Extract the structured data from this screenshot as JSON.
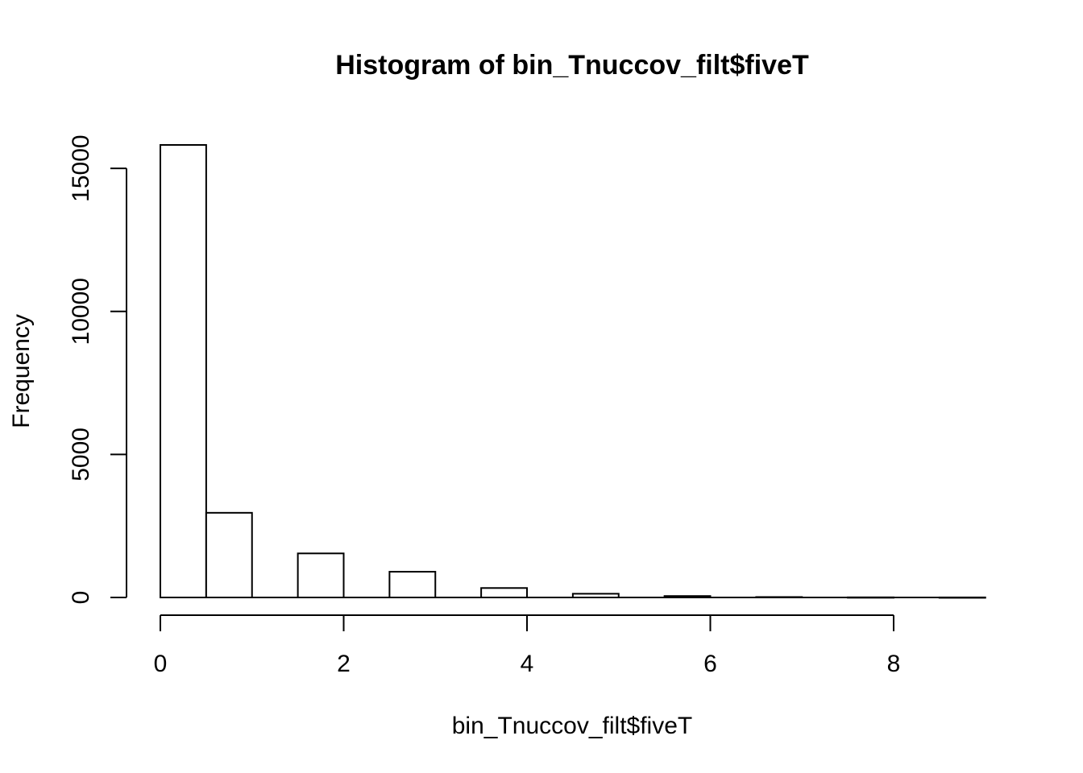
{
  "chart_data": {
    "type": "bar",
    "title": "Histogram of bin_Tnuccov_filt$fiveT",
    "xlabel": "bin_Tnuccov_filt$fiveT",
    "ylabel": "Frequency",
    "bins": [
      {
        "from": 0.0,
        "to": 0.5,
        "count": 15820
      },
      {
        "from": 0.5,
        "to": 1.0,
        "count": 2960
      },
      {
        "from": 1.0,
        "to": 1.5,
        "count": 0
      },
      {
        "from": 1.5,
        "to": 2.0,
        "count": 1540
      },
      {
        "from": 2.0,
        "to": 2.5,
        "count": 0
      },
      {
        "from": 2.5,
        "to": 3.0,
        "count": 900
      },
      {
        "from": 3.0,
        "to": 3.5,
        "count": 0
      },
      {
        "from": 3.5,
        "to": 4.0,
        "count": 330
      },
      {
        "from": 4.0,
        "to": 4.5,
        "count": 0
      },
      {
        "from": 4.5,
        "to": 5.0,
        "count": 130
      },
      {
        "from": 5.0,
        "to": 5.5,
        "count": 0
      },
      {
        "from": 5.5,
        "to": 6.0,
        "count": 50
      },
      {
        "from": 6.0,
        "to": 6.5,
        "count": 0
      },
      {
        "from": 6.5,
        "to": 7.0,
        "count": 15
      },
      {
        "from": 7.0,
        "to": 7.5,
        "count": 0
      },
      {
        "from": 7.5,
        "to": 8.0,
        "count": 5
      },
      {
        "from": 8.0,
        "to": 8.5,
        "count": 0
      },
      {
        "from": 8.5,
        "to": 9.0,
        "count": 2
      }
    ],
    "xlim": [
      0,
      9
    ],
    "ylim": [
      0,
      15820
    ],
    "x_ticks": [
      0,
      2,
      4,
      6,
      8
    ],
    "y_ticks": [
      0,
      5000,
      10000,
      15000
    ],
    "x_tick_labels": [
      "0",
      "2",
      "4",
      "6",
      "8"
    ],
    "y_tick_labels": [
      "0",
      "5000",
      "10000",
      "15000"
    ],
    "grid": false,
    "legend": "none",
    "colors": {
      "bar_fill": "#ffffff",
      "bar_stroke": "#000000",
      "background": "#ffffff"
    }
  }
}
